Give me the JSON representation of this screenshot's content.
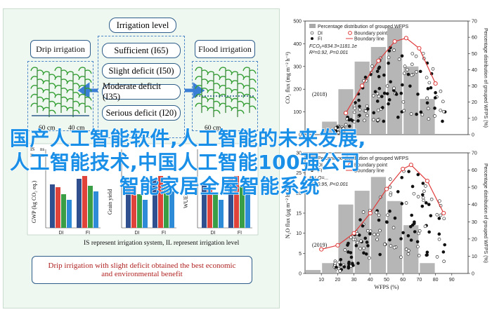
{
  "diagram": {
    "center_title": "Irrigation level",
    "levels": [
      "Sufficient (I65)",
      "Slight deficit (I50)",
      "Moderate deficit (I35)",
      "Serious deficit (I20)"
    ],
    "left_title": "Drip irrigation",
    "right_title": "Flood irrigation",
    "scale_label": "60 cm",
    "scale_label_2": "40 cm",
    "mini_y_labels": [
      "GWP (kg CO₂ eq.)",
      "Grain yield",
      "WUE"
    ],
    "mini_x_labels": [
      "DI",
      "FI"
    ],
    "mini_legend": [
      "65",
      "50",
      "35",
      "20"
    ],
    "mini_sig": [
      "ns",
      "ns",
      "A",
      "B",
      "IS",
      "IL"
    ],
    "note": "IS represent irrigation system, IL represent irrigation level",
    "conclusion_line1": "Drip irrigation with slight deficit obtained the best economic",
    "conclusion_line2": "and environmental benefit"
  },
  "chart_data": [
    {
      "type": "bar",
      "legend": [
        "Percentage distribution of grouped WFPS",
        "DI",
        "FI",
        "Boundary point",
        "Boundary line"
      ],
      "x": [
        5,
        15,
        25,
        35,
        45,
        55,
        65,
        75,
        85
      ],
      "values": [
        0,
        8,
        28,
        45,
        54,
        66,
        42,
        22,
        0
      ],
      "ylim": [
        0,
        70
      ],
      "xlim": [
        0,
        100
      ],
      "ylabel": "CO₂ flux (mg m⁻² h⁻¹)",
      "y2label": "Percentage distribution of grouped WFPS (%)",
      "equation": "FCO₂=834.3×1181.1e",
      "r2": "R²=0.92, P=0.001",
      "year": "(2018)",
      "y_ticks": [
        0,
        100,
        200,
        300,
        400,
        500
      ],
      "y2_ticks": [
        0,
        10,
        20,
        30,
        40,
        50,
        60,
        70
      ],
      "boundary_line": [
        [
          25,
          95
        ],
        [
          35,
          215
        ],
        [
          45,
          325
        ],
        [
          55,
          410
        ],
        [
          62,
          425
        ],
        [
          70,
          380
        ],
        [
          80,
          225
        ]
      ]
    },
    {
      "type": "bar",
      "legend": [
        "Percentage distribution of grouped WFPS",
        "DI",
        "FI",
        "Boundary point",
        "Boundary line"
      ],
      "x": [
        5,
        15,
        25,
        35,
        45,
        55,
        65,
        75,
        85
      ],
      "values": [
        2,
        6,
        40,
        48,
        56,
        42,
        28,
        6,
        0
      ],
      "ylim": [
        0,
        70
      ],
      "xlim": [
        0,
        100
      ],
      "xlabel": "WFPS (%)",
      "ylabel": "N₂O flux (μg m⁻² h⁻¹)",
      "y2label": "Percentage distribution of grouped WFPS (%)",
      "equation": "FN₂O=...",
      "r2": "R²=0.95, P<0.001",
      "year": "(2019)",
      "x_ticks": [
        10,
        20,
        30,
        40,
        50,
        60,
        70,
        80,
        90
      ],
      "y_ticks": [
        0,
        5,
        10,
        15,
        20,
        25,
        30
      ],
      "y2_ticks": [
        0,
        10,
        20,
        30,
        40,
        50,
        60,
        70
      ],
      "boundary_line": [
        [
          10,
          6
        ],
        [
          20,
          7
        ],
        [
          30,
          10
        ],
        [
          40,
          15
        ],
        [
          50,
          21
        ],
        [
          60,
          26
        ],
        [
          65,
          27
        ],
        [
          75,
          23
        ],
        [
          85,
          15
        ]
      ]
    }
  ],
  "watermark": {
    "line1": "国产人工智能软件,人工智能的未来发展,",
    "line2": "人工智能技术,中国人工智能100强公司",
    "line3": "智能家居全屋智能系统"
  },
  "colors": {
    "bar": "#a9a9a9",
    "boundary": "#e03b3b",
    "accent": "#2e5d8a",
    "watermark": "#1a8fe8"
  }
}
